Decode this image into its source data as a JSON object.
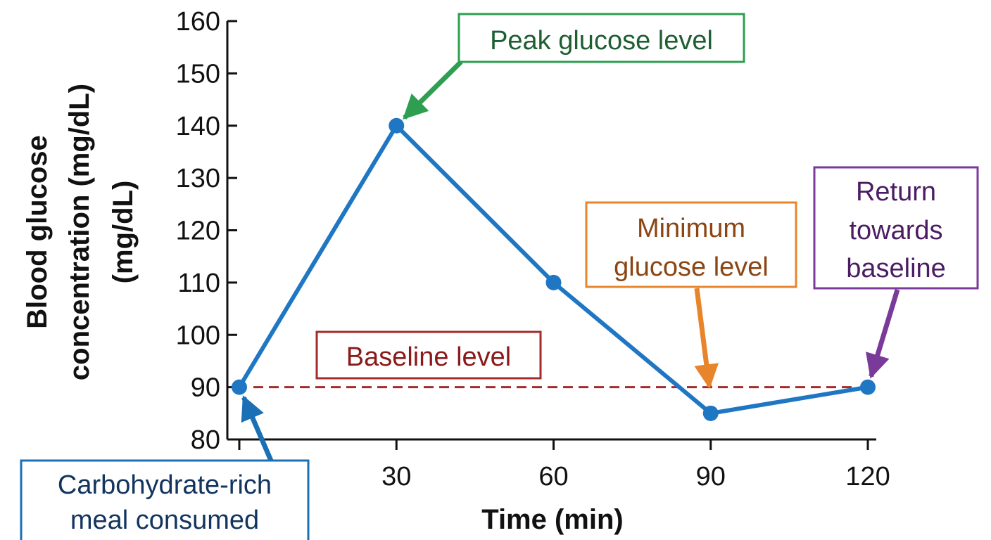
{
  "chart_data": {
    "type": "line",
    "title": "",
    "xlabel": "Time (min)",
    "ylabel_lines": [
      "Blood glucose",
      "concentration (mg/dL)",
      "(mg/dL)"
    ],
    "x": [
      0,
      30,
      60,
      90,
      120
    ],
    "xticks": [
      "30",
      "60",
      "90",
      "120"
    ],
    "xlim": [
      0,
      120
    ],
    "ylim": [
      80,
      160
    ],
    "yticks": [
      "80",
      "90",
      "100",
      "110",
      "120",
      "130",
      "140",
      "150",
      "160"
    ],
    "grid": false,
    "series": [
      {
        "values": [
          90,
          140,
          110,
          85,
          90
        ],
        "color": "#1f77c4"
      }
    ],
    "baseline": {
      "value": 90,
      "color": "#a52a2a",
      "style": "dashed"
    },
    "annotations": [
      {
        "lines": [
          "Peak glucose level"
        ],
        "color": "#2e9e50",
        "text_color": "#1d5e32",
        "target": [
          30,
          140
        ]
      },
      {
        "lines": [
          "Baseline level"
        ],
        "color": "#a52a2a",
        "text_color": "#8b1a1a"
      },
      {
        "lines": [
          "Minimum",
          "glucose level"
        ],
        "color": "#e8852b",
        "text_color": "#8b4513",
        "target": [
          90,
          88
        ]
      },
      {
        "lines": [
          "Return",
          "towards",
          "baseline"
        ],
        "color": "#7a3a9a",
        "text_color": "#4b1c63",
        "target": [
          120,
          90
        ]
      },
      {
        "lines": [
          "Carbohydrate-rich",
          "meal consumed"
        ],
        "color": "#1a6fb5",
        "text_color": "#12345e",
        "target": [
          0,
          90
        ]
      }
    ]
  }
}
